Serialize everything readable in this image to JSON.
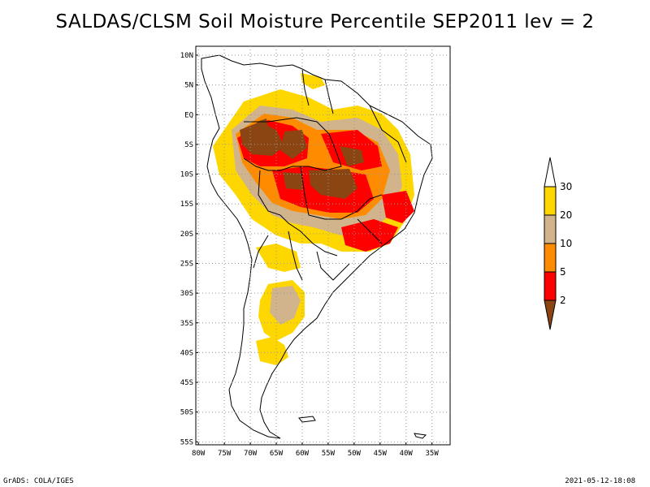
{
  "title": "SALDAS/CLSM Soil Moisture Percentile SEP2011 lev = 2",
  "map": {
    "lat_labels": [
      "10N",
      "5N",
      "EQ",
      "5S",
      "10S",
      "15S",
      "20S",
      "25S",
      "30S",
      "35S",
      "40S",
      "45S",
      "50S",
      "55S"
    ],
    "lat_values": [
      10,
      5,
      0,
      -5,
      -10,
      -15,
      -20,
      -25,
      -30,
      -35,
      -40,
      -45,
      -50,
      -55
    ],
    "lon_labels": [
      "80W",
      "75W",
      "70W",
      "65W",
      "60W",
      "55W",
      "50W",
      "45W",
      "40W",
      "35W"
    ],
    "lon_values": [
      -80,
      -75,
      -70,
      -65,
      -60,
      -55,
      -50,
      -45,
      -40,
      -35
    ],
    "extent": {
      "lon": [
        -80.5,
        -31.5
      ],
      "lat": [
        -55.5,
        11.5
      ]
    }
  },
  "legend": {
    "labels": [
      "2",
      "5",
      "10",
      "20",
      "30"
    ],
    "colors": [
      "#8B4513",
      "#FF0000",
      "#FF8C00",
      "#D2B48C",
      "#FFD700"
    ],
    "top_color": "#FFFFFF"
  },
  "colors": {
    "dark_brown": "#8B4513",
    "red": "#FF0000",
    "orange": "#FF8C00",
    "tan": "#D2B48C",
    "yellow": "#FFD700",
    "coast": "#000000",
    "grid": "#999999"
  },
  "footer": {
    "left": "GrADS: COLA/IGES",
    "right": "2021-05-12-18:08"
  }
}
